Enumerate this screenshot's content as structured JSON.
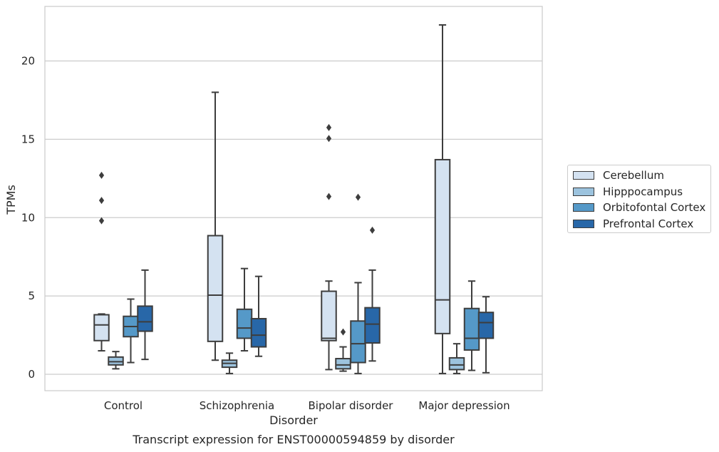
{
  "chart_data": {
    "type": "box",
    "title": "Transcript expression for ENST00000594859 by disorder",
    "xlabel": "Disorder",
    "ylabel": "TPMs",
    "ylim": [
      -1,
      23.5
    ],
    "yticks": [
      0,
      5,
      10,
      15,
      20
    ],
    "grid": "horizontal",
    "legend_placement": "right",
    "categories": [
      "Control",
      "Schizophrenia",
      "Bipolar disorder",
      "Major depression"
    ],
    "series": [
      {
        "name": "Cerebellum",
        "color": "#d4e2f1",
        "boxes": [
          {
            "whislo": 1.5,
            "q1": 2.15,
            "med": 3.15,
            "q3": 3.8,
            "whishi": 3.85,
            "fliers": [
              9.8,
              11.1,
              12.7
            ]
          },
          {
            "whislo": 0.9,
            "q1": 2.1,
            "med": 5.05,
            "q3": 8.85,
            "whishi": 18.0,
            "fliers": []
          },
          {
            "whislo": 0.3,
            "q1": 2.15,
            "med": 2.3,
            "q3": 5.3,
            "whishi": 5.95,
            "fliers": [
              11.35,
              15.05,
              15.75
            ]
          },
          {
            "whislo": 0.05,
            "q1": 2.6,
            "med": 4.75,
            "q3": 13.7,
            "whishi": 22.3,
            "fliers": []
          }
        ]
      },
      {
        "name": "Hipppocampus",
        "color": "#9cc3de",
        "boxes": [
          {
            "whislo": 0.35,
            "q1": 0.6,
            "med": 0.8,
            "q3": 1.1,
            "whishi": 1.45,
            "fliers": []
          },
          {
            "whislo": 0.05,
            "q1": 0.45,
            "med": 0.7,
            "q3": 0.9,
            "whishi": 1.35,
            "fliers": []
          },
          {
            "whislo": 0.2,
            "q1": 0.35,
            "med": 0.6,
            "q3": 1.0,
            "whishi": 1.75,
            "fliers": [
              2.7
            ]
          },
          {
            "whislo": 0.05,
            "q1": 0.3,
            "med": 0.6,
            "q3": 1.05,
            "whishi": 1.95,
            "fliers": []
          }
        ]
      },
      {
        "name": "Orbitofontal Cortex",
        "color": "#5599c8",
        "boxes": [
          {
            "whislo": 0.75,
            "q1": 2.4,
            "med": 3.05,
            "q3": 3.7,
            "whishi": 4.8,
            "fliers": []
          },
          {
            "whislo": 1.5,
            "q1": 2.3,
            "med": 2.95,
            "q3": 4.15,
            "whishi": 6.75,
            "fliers": []
          },
          {
            "whislo": 0.05,
            "q1": 0.75,
            "med": 1.95,
            "q3": 3.4,
            "whishi": 5.85,
            "fliers": [
              11.3
            ]
          },
          {
            "whislo": 0.25,
            "q1": 1.55,
            "med": 2.3,
            "q3": 4.2,
            "whishi": 5.95,
            "fliers": []
          }
        ]
      },
      {
        "name": "Prefrontal Cortex",
        "color": "#2867a8",
        "boxes": [
          {
            "whislo": 0.95,
            "q1": 2.75,
            "med": 3.35,
            "q3": 4.35,
            "whishi": 6.65,
            "fliers": []
          },
          {
            "whislo": 1.15,
            "q1": 1.75,
            "med": 2.5,
            "q3": 3.55,
            "whishi": 6.25,
            "fliers": []
          },
          {
            "whislo": 0.85,
            "q1": 2.0,
            "med": 3.2,
            "q3": 4.25,
            "whishi": 6.65,
            "fliers": [
              9.2
            ]
          },
          {
            "whislo": 0.1,
            "q1": 2.3,
            "med": 3.3,
            "q3": 3.95,
            "whishi": 4.95,
            "fliers": []
          }
        ]
      }
    ]
  }
}
